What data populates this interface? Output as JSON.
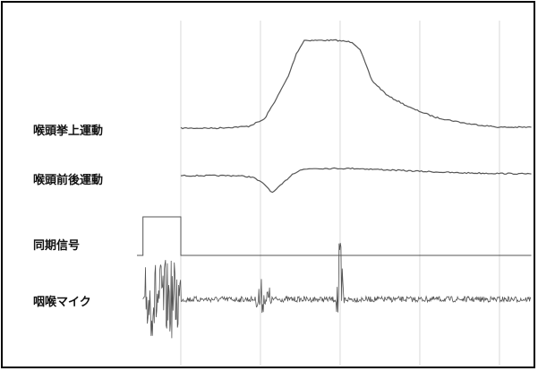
{
  "chart_data": {
    "type": "line",
    "title": "",
    "xlabel": "",
    "ylabel": "",
    "grid": true,
    "x_range": [
      0,
      10
    ],
    "vertical_gridlines_x": [
      1.1,
      3.1,
      5.1,
      7.1,
      9.1
    ],
    "colors": {
      "trace": "#555555",
      "grid": "#d8d8d8",
      "frame": "#000000"
    },
    "series": [
      {
        "name": "喉頭挙上運動",
        "x": [
          1.1,
          2.0,
          2.8,
          3.2,
          3.5,
          3.8,
          4.0,
          4.2,
          4.35,
          4.6,
          5.0,
          5.4,
          5.6,
          5.9,
          6.3,
          6.9,
          7.5,
          8.3,
          9.1,
          9.9
        ],
        "y": [
          0.02,
          0.02,
          0.04,
          0.12,
          0.35,
          0.6,
          0.85,
          1.0,
          1.0,
          1.0,
          1.0,
          0.98,
          0.9,
          0.55,
          0.38,
          0.24,
          0.14,
          0.07,
          0.03,
          0.03
        ]
      },
      {
        "name": "喉頭前後運動",
        "x": [
          1.1,
          2.5,
          2.9,
          3.2,
          3.4,
          3.6,
          3.9,
          4.1,
          4.4,
          5.5,
          6.6,
          8.0,
          9.9
        ],
        "y": [
          0.0,
          0.0,
          -0.05,
          -0.3,
          -0.6,
          -0.35,
          0.05,
          0.2,
          0.25,
          0.25,
          0.18,
          0.1,
          0.06
        ]
      },
      {
        "name": "同期信号",
        "x": [
          0.0,
          0.15,
          0.15,
          1.1,
          1.1,
          9.9
        ],
        "y": [
          0,
          0,
          1,
          1,
          0,
          0
        ]
      },
      {
        "name": "咽喉マイク",
        "bursts": [
          {
            "x_start": 0.2,
            "x_end": 1.1,
            "amplitude": 0.55
          },
          {
            "x_center": 3.1,
            "width": 0.15,
            "amplitude": 0.35
          },
          {
            "x_center": 3.3,
            "width": 0.1,
            "amplitude": 0.25
          },
          {
            "x_center": 5.1,
            "width": 0.12,
            "amplitude": 1.0
          }
        ]
      }
    ]
  }
}
